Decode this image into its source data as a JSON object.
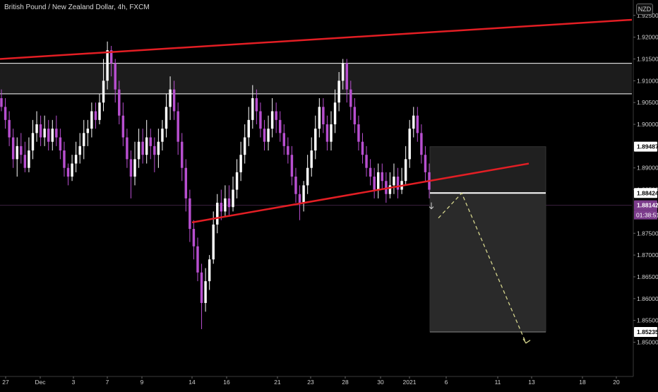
{
  "title": "British Pound / New Zealand Dollar, 4h, FXCM",
  "currency": "NZD",
  "colors": {
    "background": "#000000",
    "candle_up": "#ffffff",
    "candle_down": "#b84fd0",
    "trendline": "#e31e24",
    "zone_border": "#ffffff",
    "zone_fill": "#1c1c1c",
    "projection": "#d4d48c",
    "current_price": "#7c3c8c",
    "price_tag": "#ffffff",
    "gridline_cursor": "#3b203f"
  },
  "chart_data": {
    "type": "candlestick",
    "symbol": "GBPNZD",
    "timeframe": "4h",
    "ylim": [
      1.847,
      1.9255
    ],
    "y_ticks": [
      "1.92500",
      "1.92000",
      "1.91500",
      "1.91000",
      "1.90500",
      "1.90000",
      "1.89000",
      "1.88500",
      "1.87500",
      "1.87000",
      "1.86500",
      "1.86000",
      "1.85500",
      "1.85000"
    ],
    "x_ticks": [
      "27",
      "Dec",
      "3",
      "7",
      "9",
      "14",
      "16",
      "21",
      "23",
      "28",
      "30",
      "2021",
      "6",
      "11",
      "13",
      "18",
      "20"
    ],
    "price_tags": {
      "tp_upper": "1.89487",
      "entry": "1.88424",
      "current": "1.88142",
      "countdown": "01:38:51",
      "stop": "1.85235"
    },
    "current_price": 1.88142,
    "resistance_zone": {
      "top": 1.914,
      "bottom": 1.907
    },
    "upper_trendline": {
      "from": 1.915,
      "to": 1.924
    },
    "lower_trendline": {
      "from": 1.8775,
      "to": 1.891
    },
    "short_position": {
      "entry": 1.88424,
      "stop_level": 1.89487,
      "target": 1.85235
    },
    "projection_path": [
      1.8785,
      1.8842,
      1.8498
    ],
    "candles": [
      [
        1.906,
        1.904,
        1.908,
        1.903
      ],
      [
        1.904,
        1.901,
        1.906,
        1.899
      ],
      [
        1.901,
        1.897,
        1.903,
        1.895
      ],
      [
        1.897,
        1.892,
        1.899,
        1.89
      ],
      [
        1.892,
        1.895,
        1.897,
        1.888
      ],
      [
        1.895,
        1.893,
        1.898,
        1.891
      ],
      [
        1.893,
        1.89,
        1.896,
        1.889
      ],
      [
        1.89,
        1.894,
        1.897,
        1.889
      ],
      [
        1.894,
        1.898,
        1.901,
        1.892
      ],
      [
        1.898,
        1.9,
        1.903,
        1.896
      ],
      [
        1.9,
        1.897,
        1.902,
        1.895
      ],
      [
        1.897,
        1.899,
        1.902,
        1.895
      ],
      [
        1.899,
        1.896,
        1.901,
        1.894
      ],
      [
        1.896,
        1.899,
        1.901,
        1.894
      ],
      [
        1.899,
        1.897,
        1.902,
        1.895
      ],
      [
        1.897,
        1.894,
        1.899,
        1.892
      ],
      [
        1.894,
        1.89,
        1.896,
        1.888
      ],
      [
        1.89,
        1.888,
        1.891,
        1.886
      ],
      [
        1.888,
        1.891,
        1.893,
        1.887
      ],
      [
        1.891,
        1.893,
        1.896,
        1.889
      ],
      [
        1.893,
        1.895,
        1.898,
        1.891
      ],
      [
        1.895,
        1.898,
        1.901,
        1.892
      ],
      [
        1.898,
        1.899,
        1.901,
        1.895
      ],
      [
        1.899,
        1.903,
        1.905,
        1.897
      ],
      [
        1.903,
        1.901,
        1.905,
        1.899
      ],
      [
        1.901,
        1.905,
        1.907,
        1.9
      ],
      [
        1.905,
        1.91,
        1.915,
        1.903
      ],
      [
        1.91,
        1.917,
        1.919,
        1.908
      ],
      [
        1.917,
        1.914,
        1.918,
        1.911
      ],
      [
        1.914,
        1.908,
        1.915,
        1.905
      ],
      [
        1.908,
        1.902,
        1.91,
        1.9
      ],
      [
        1.902,
        1.897,
        1.905,
        1.895
      ],
      [
        1.897,
        1.892,
        1.899,
        1.89
      ],
      [
        1.892,
        1.888,
        1.894,
        1.883
      ],
      [
        1.888,
        1.892,
        1.896,
        1.886
      ],
      [
        1.892,
        1.896,
        1.899,
        1.89
      ],
      [
        1.896,
        1.893,
        1.899,
        1.891
      ],
      [
        1.893,
        1.897,
        1.901,
        1.891
      ],
      [
        1.897,
        1.895,
        1.899,
        1.892
      ],
      [
        1.895,
        1.893,
        1.897,
        1.889
      ],
      [
        1.893,
        1.896,
        1.899,
        1.89
      ],
      [
        1.896,
        1.899,
        1.901,
        1.894
      ],
      [
        1.899,
        1.904,
        1.907,
        1.897
      ],
      [
        1.904,
        1.908,
        1.911,
        1.901
      ],
      [
        1.908,
        1.903,
        1.91,
        1.901
      ],
      [
        1.903,
        1.896,
        1.905,
        1.893
      ],
      [
        1.896,
        1.89,
        1.898,
        1.887
      ],
      [
        1.89,
        1.883,
        1.892,
        1.88
      ],
      [
        1.883,
        1.876,
        1.885,
        1.873
      ],
      [
        1.876,
        1.872,
        1.878,
        1.869
      ],
      [
        1.872,
        1.866,
        1.874,
        1.864
      ],
      [
        1.866,
        1.859,
        1.868,
        1.853
      ],
      [
        1.859,
        1.864,
        1.867,
        1.857
      ],
      [
        1.864,
        1.869,
        1.87,
        1.862
      ],
      [
        1.869,
        1.877,
        1.88,
        1.868
      ],
      [
        1.877,
        1.882,
        1.884,
        1.875
      ],
      [
        1.882,
        1.88,
        1.885,
        1.878
      ],
      [
        1.88,
        1.883,
        1.886,
        1.879
      ],
      [
        1.883,
        1.881,
        1.886,
        1.879
      ],
      [
        1.881,
        1.885,
        1.888,
        1.88
      ],
      [
        1.885,
        1.889,
        1.892,
        1.883
      ],
      [
        1.889,
        1.893,
        1.896,
        1.887
      ],
      [
        1.893,
        1.897,
        1.9,
        1.891
      ],
      [
        1.897,
        1.901,
        1.904,
        1.895
      ],
      [
        1.901,
        1.906,
        1.909,
        1.899
      ],
      [
        1.906,
        1.903,
        1.908,
        1.9
      ],
      [
        1.903,
        1.899,
        1.905,
        1.897
      ],
      [
        1.899,
        1.896,
        1.901,
        1.894
      ],
      [
        1.896,
        1.899,
        1.902,
        1.894
      ],
      [
        1.899,
        1.903,
        1.906,
        1.897
      ],
      [
        1.903,
        1.901,
        1.905,
        1.898
      ],
      [
        1.901,
        1.898,
        1.903,
        1.896
      ],
      [
        1.898,
        1.895,
        1.9,
        1.893
      ],
      [
        1.895,
        1.893,
        1.897,
        1.891
      ],
      [
        1.893,
        1.888,
        1.895,
        1.886
      ],
      [
        1.888,
        1.884,
        1.89,
        1.882
      ],
      [
        1.884,
        1.882,
        1.886,
        1.878
      ],
      [
        1.882,
        1.886,
        1.887,
        1.88
      ],
      [
        1.886,
        1.89,
        1.893,
        1.884
      ],
      [
        1.89,
        1.894,
        1.897,
        1.888
      ],
      [
        1.894,
        1.899,
        1.902,
        1.892
      ],
      [
        1.899,
        1.904,
        1.906,
        1.897
      ],
      [
        1.904,
        1.9,
        1.906,
        1.898
      ],
      [
        1.9,
        1.896,
        1.902,
        1.894
      ],
      [
        1.896,
        1.9,
        1.903,
        1.894
      ],
      [
        1.9,
        1.905,
        1.908,
        1.898
      ],
      [
        1.905,
        1.91,
        1.912,
        1.903
      ],
      [
        1.91,
        1.914,
        1.915,
        1.908
      ],
      [
        1.914,
        1.908,
        1.915,
        1.905
      ],
      [
        1.908,
        1.904,
        1.91,
        1.901
      ],
      [
        1.904,
        1.9,
        1.906,
        1.898
      ],
      [
        1.9,
        1.896,
        1.902,
        1.894
      ],
      [
        1.896,
        1.893,
        1.898,
        1.891
      ],
      [
        1.893,
        1.89,
        1.895,
        1.888
      ],
      [
        1.89,
        1.888,
        1.892,
        1.886
      ],
      [
        1.888,
        1.885,
        1.89,
        1.883
      ],
      [
        1.885,
        1.889,
        1.891,
        1.883
      ],
      [
        1.889,
        1.887,
        1.891,
        1.885
      ],
      [
        1.887,
        1.884,
        1.889,
        1.882
      ],
      [
        1.884,
        1.886,
        1.889,
        1.883
      ],
      [
        1.886,
        1.888,
        1.891,
        1.884
      ],
      [
        1.888,
        1.885,
        1.89,
        1.883
      ],
      [
        1.885,
        1.887,
        1.89,
        1.884
      ],
      [
        1.887,
        1.892,
        1.895,
        1.886
      ],
      [
        1.892,
        1.899,
        1.901,
        1.89
      ],
      [
        1.899,
        1.902,
        1.904,
        1.897
      ],
      [
        1.902,
        1.898,
        1.904,
        1.896
      ],
      [
        1.898,
        1.893,
        1.9,
        1.891
      ],
      [
        1.893,
        1.889,
        1.895,
        1.887
      ],
      [
        1.889,
        1.885,
        1.891,
        1.883
      ]
    ]
  }
}
